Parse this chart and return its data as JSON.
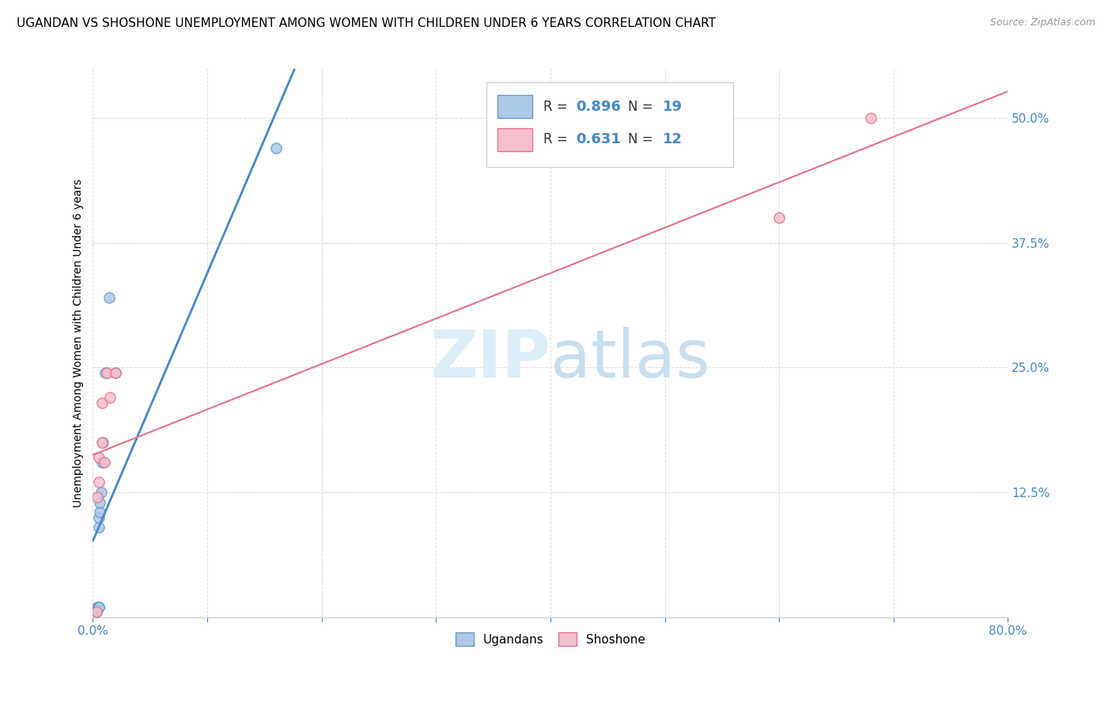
{
  "title": "UGANDAN VS SHOSHONE UNEMPLOYMENT AMONG WOMEN WITH CHILDREN UNDER 6 YEARS CORRELATION CHART",
  "source": "Source: ZipAtlas.com",
  "ylabel": "Unemployment Among Women with Children Under 6 years",
  "xlim": [
    0.0,
    0.8
  ],
  "ylim": [
    0.0,
    0.55
  ],
  "x_ticks": [
    0.0,
    0.1,
    0.2,
    0.3,
    0.4,
    0.5,
    0.6,
    0.7,
    0.8
  ],
  "x_tick_labels": [
    "0.0%",
    "",
    "",
    "",
    "",
    "",
    "",
    "",
    "80.0%"
  ],
  "y_ticks": [
    0.0,
    0.125,
    0.25,
    0.375,
    0.5
  ],
  "y_tick_labels": [
    "",
    "12.5%",
    "25.0%",
    "37.5%",
    "50.0%"
  ],
  "ugandan_x": [
    0.003,
    0.003,
    0.004,
    0.004,
    0.004,
    0.005,
    0.005,
    0.005,
    0.005,
    0.005,
    0.006,
    0.006,
    0.007,
    0.008,
    0.009,
    0.011,
    0.014,
    0.02,
    0.16
  ],
  "ugandan_y": [
    0.005,
    0.007,
    0.008,
    0.009,
    0.01,
    0.01,
    0.01,
    0.01,
    0.09,
    0.1,
    0.105,
    0.115,
    0.125,
    0.155,
    0.175,
    0.245,
    0.32,
    0.245,
    0.47
  ],
  "shoshone_x": [
    0.003,
    0.004,
    0.005,
    0.005,
    0.008,
    0.008,
    0.01,
    0.012,
    0.015,
    0.02,
    0.6,
    0.68
  ],
  "shoshone_y": [
    0.005,
    0.12,
    0.135,
    0.16,
    0.175,
    0.215,
    0.155,
    0.245,
    0.22,
    0.245,
    0.4,
    0.5
  ],
  "ugandan_color": "#adc8e8",
  "shoshone_color": "#f5bfce",
  "ugandan_edge_color": "#6699cc",
  "shoshone_edge_color": "#e8708a",
  "ugandan_line_color": "#4488cc",
  "shoshone_line_color": "#e8708a",
  "R_ugandan": 0.896,
  "N_ugandan": 19,
  "R_shoshone": 0.631,
  "N_shoshone": 12,
  "background_color": "#ffffff",
  "grid_color": "#dddddd",
  "title_fontsize": 11,
  "label_fontsize": 10,
  "tick_fontsize": 11,
  "marker_size": 90
}
